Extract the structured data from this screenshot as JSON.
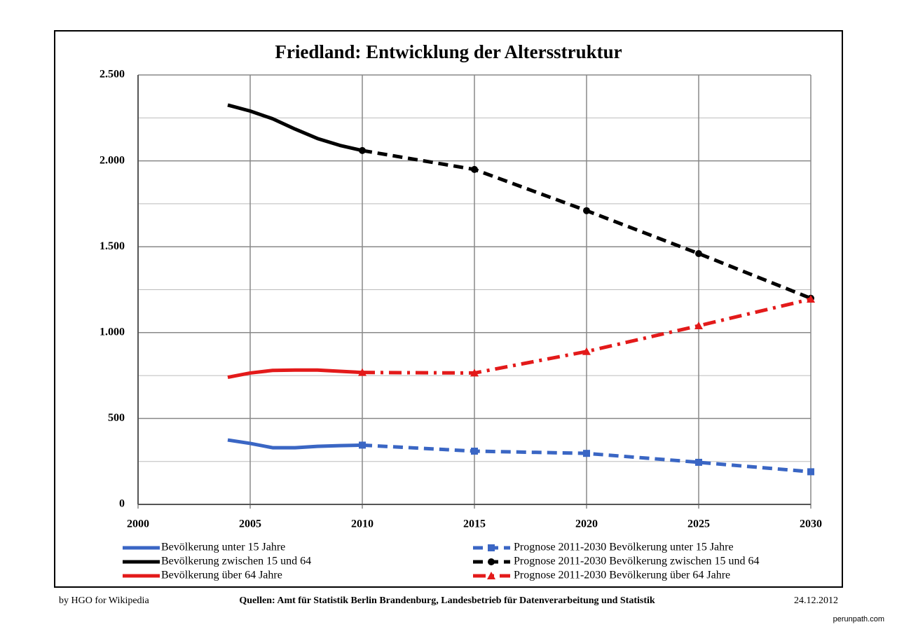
{
  "chart_data": {
    "type": "line",
    "title": "Friedland:  Entwicklung der Altersstruktur",
    "xlim": [
      2000,
      2030
    ],
    "xticks": [
      2000,
      2005,
      2010,
      2015,
      2020,
      2025,
      2030
    ],
    "ylim": [
      0,
      2500
    ],
    "yticks": [
      {
        "value": 0,
        "label": "0"
      },
      {
        "value": 500,
        "label": "500"
      },
      {
        "value": 1000,
        "label": "1.000"
      },
      {
        "value": 1500,
        "label": "1.500"
      },
      {
        "value": 2000,
        "label": "2.000"
      },
      {
        "value": 2500,
        "label": "2.500"
      }
    ],
    "y_minor_grid": [
      250,
      750,
      1250,
      1750,
      2250
    ],
    "grid": true,
    "series": [
      {
        "name": "Bevölkerung unter 15 Jahre",
        "color": "#3a66c4",
        "dash": "solid",
        "marker": "none",
        "x": [
          2004,
          2005,
          2006,
          2007,
          2008,
          2009,
          2010
        ],
        "values": [
          375,
          355,
          330,
          330,
          338,
          342,
          345
        ]
      },
      {
        "name": "Bevölkerung zwischen 15 und 64",
        "color": "#000000",
        "dash": "solid",
        "marker": "none",
        "x": [
          2004,
          2005,
          2006,
          2007,
          2008,
          2009,
          2010
        ],
        "values": [
          2325,
          2290,
          2245,
          2185,
          2130,
          2090,
          2060
        ]
      },
      {
        "name": "Bevölkerung über 64 Jahre",
        "color": "#e31a1a",
        "dash": "solid",
        "marker": "none",
        "x": [
          2004,
          2005,
          2006,
          2007,
          2008,
          2009,
          2010
        ],
        "values": [
          740,
          765,
          780,
          782,
          782,
          775,
          768
        ]
      },
      {
        "name": "Prognose 2011-2030 Bevölkerung unter 15 Jahre",
        "color": "#3a66c4",
        "dash": "dash",
        "marker": "square",
        "x": [
          2010,
          2015,
          2020,
          2025,
          2030
        ],
        "values": [
          345,
          310,
          297,
          245,
          190
        ]
      },
      {
        "name": "Prognose 2011-2030 Bevölkerung zwischen 15 und 64",
        "color": "#000000",
        "dash": "dash",
        "marker": "circle",
        "x": [
          2010,
          2015,
          2020,
          2025,
          2030
        ],
        "values": [
          2060,
          1950,
          1710,
          1460,
          1200
        ]
      },
      {
        "name": "Prognose 2011-2030 Bevölkerung über 64 Jahre",
        "color": "#e31a1a",
        "dash": "dashdot",
        "marker": "triangle",
        "x": [
          2010,
          2015,
          2020,
          2025,
          2030
        ],
        "values": [
          768,
          765,
          890,
          1040,
          1195
        ]
      }
    ],
    "footer_left": "by HGO for Wikipedia",
    "footer_center": "Quellen: Amt für Statistik Berlin Brandenburg, Landesbetrieb für Datenverarbeitung und Statistik",
    "footer_right": "24.12.2012",
    "watermark": "perunpath.com"
  }
}
